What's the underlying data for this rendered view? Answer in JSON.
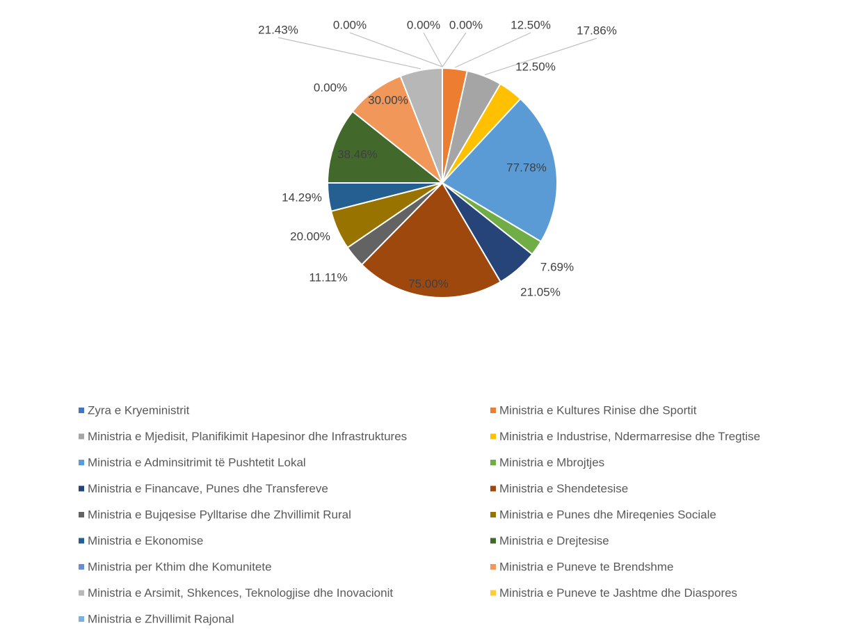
{
  "chart_data": {
    "type": "pie",
    "categories": [
      "Zyra e Kryeministrit",
      "Ministria e Kultures Rinise dhe Sportit",
      "Ministria e Mjedisit, Planifikimit Hapesinor dhe Infrastruktures",
      "Ministria e Industrise, Ndermarresise dhe Tregtise",
      "Ministria e Adminsitrimit të Pushtetit Lokal",
      "Ministria e Mbrojtjes",
      "Ministria e Financave, Punes dhe Transfereve",
      "Ministria e Shendetesise",
      "Ministria e Bujqesise Pylltarise dhe Zhvillimit Rural",
      "Ministria e Punes dhe Mireqenies Sociale",
      "Ministria e Ekonomise",
      "Ministria e Drejtesise",
      "Ministria per Kthim dhe Komunitete",
      "Ministria e Puneve te Brendshme",
      "Ministria e Arsimit, Shkences, Teknologjise dhe Inovacionit",
      "Ministria e Puneve te Jashtme dhe Diaspores",
      "Ministria e Zhvillimit Rajonal"
    ],
    "values": [
      0,
      12.5,
      17.86,
      12.5,
      77.78,
      7.69,
      21.05,
      75,
      11.11,
      20,
      14.29,
      38.46,
      0,
      30,
      21.43,
      0,
      0
    ],
    "value_labels": [
      "0.00%",
      "12.50%",
      "17.86%",
      "12.50%",
      "77.78%",
      "7.69%",
      "21.05%",
      "75.00%",
      "11.11%",
      "20.00%",
      "14.29%",
      "38.46%",
      "0.00%",
      "30.00%",
      "21.43%",
      "0.00%",
      "0.00%"
    ],
    "colors": [
      "#4472c4",
      "#ed7d31",
      "#a5a5a5",
      "#ffc000",
      "#5b9bd5",
      "#70ad47",
      "#264478",
      "#9e480e",
      "#636363",
      "#997300",
      "#255e91",
      "#43682b",
      "#698ed0",
      "#f1975a",
      "#b7b7b7",
      "#ffcd33",
      "#7cafdd"
    ],
    "legend": "bottom"
  }
}
